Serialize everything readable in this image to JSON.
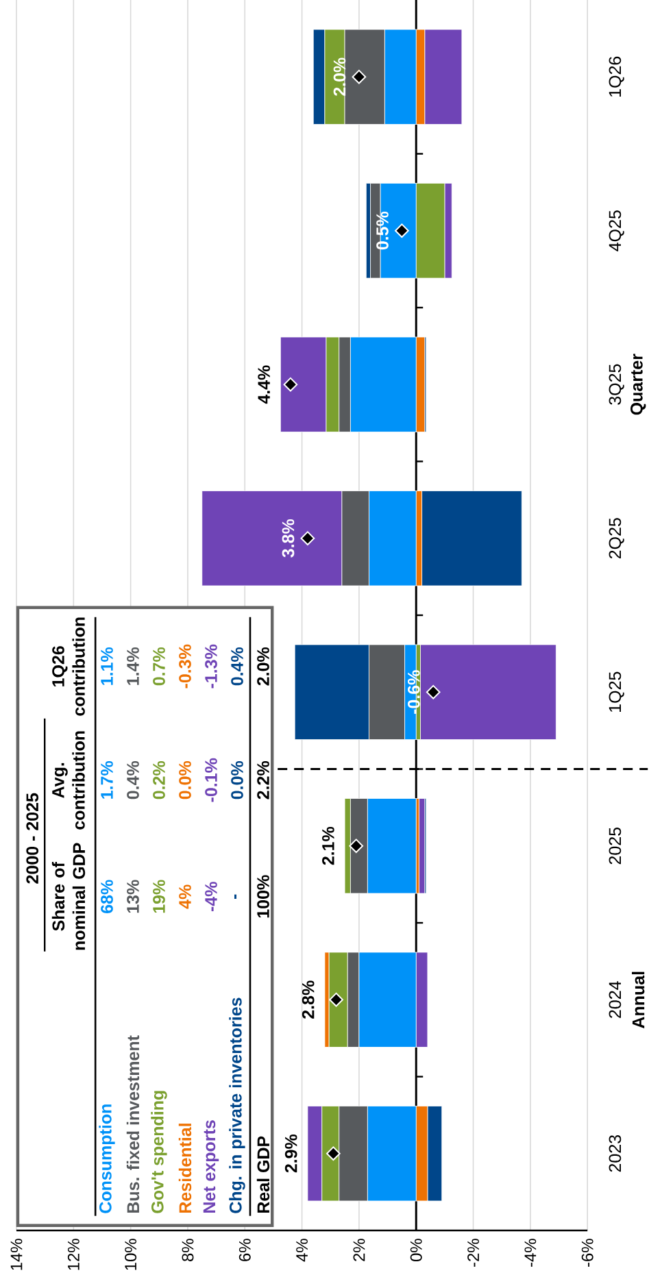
{
  "chart_data": {
    "type": "bar",
    "orientation": "horizontal",
    "stacked": true,
    "grid": "x",
    "legend": "bottom left",
    "marker": "diamond",
    "categories": [
      "1Q26",
      "4Q25",
      "3Q25",
      "2Q25",
      "1Q25",
      "2025",
      "2024",
      "2023"
    ],
    "xlim": [
      14,
      -6
    ],
    "xticks": [
      {
        "value": 14,
        "label": "14%"
      },
      {
        "value": 12,
        "label": "12%"
      },
      {
        "value": 10,
        "label": "10%"
      },
      {
        "value": 8,
        "label": "8%"
      },
      {
        "value": 6,
        "label": "6%"
      },
      {
        "value": 4,
        "label": "4%"
      },
      {
        "value": 2,
        "label": "2%"
      },
      {
        "value": 0,
        "label": "0%"
      },
      {
        "value": -2,
        "label": "-2%"
      },
      {
        "value": -4,
        "label": "-4%"
      },
      {
        "value": -6,
        "label": "-6%"
      }
    ],
    "series": [
      {
        "name": "Consumption",
        "color": "#0092f8",
        "values": [
          1.1,
          1.25,
          2.3,
          1.65,
          0.4,
          1.7,
          2.0,
          1.7
        ]
      },
      {
        "name": "Bus. fixed investment",
        "color": "#575a5d",
        "values": [
          1.4,
          0.35,
          0.4,
          0.95,
          1.25,
          0.6,
          0.4,
          1.0
        ]
      },
      {
        "name": "Gov't spending",
        "color": "#7ba02f",
        "values": [
          0.7,
          -1.0,
          0.45,
          0,
          -0.15,
          0.2,
          0.65,
          0.6
        ]
      },
      {
        "name": "Residential",
        "color": "#ee7203",
        "values": [
          -0.3,
          0,
          -0.3,
          -0.2,
          0,
          -0.1,
          0.15,
          -0.4
        ]
      },
      {
        "name": "Net exports",
        "color": "#6f44b6",
        "values": [
          -1.3,
          -0.25,
          1.6,
          4.9,
          -4.75,
          -0.2,
          -0.4,
          0.5
        ]
      },
      {
        "name": "Chg. in private inventories",
        "color": "#00468a",
        "values": [
          0.4,
          0.15,
          -0.05,
          -3.5,
          2.6,
          -0.05,
          0,
          -0.5
        ]
      },
      {
        "name": "Real GDP",
        "type": "scatter",
        "color": "#000000",
        "values": [
          2.0,
          0.5,
          4.4,
          3.8,
          -0.6,
          2.1,
          2.8,
          2.9
        ],
        "value_labels": [
          "2.0%",
          "0.5%",
          "4.4%",
          "3.8%",
          "-0.6%",
          "2.1%",
          "2.8%",
          "2.9%"
        ]
      }
    ],
    "annotations": [
      "2000 - 2025",
      "Share of nominal GDP",
      "Avg. contribution",
      "1Q26 contribution",
      "68%",
      "1.7%",
      "1.1%",
      "13%",
      "0.4%",
      "1.4%",
      "19%",
      "0.2%",
      "0.7%",
      "4%",
      "0.0%",
      "-0.3%",
      "-4%",
      "-0.1%",
      "-1.3%",
      "-",
      "0.0%",
      "0.4%",
      "100%",
      "2.2%",
      "2.0%",
      "Annual",
      "Quarter"
    ]
  }
}
